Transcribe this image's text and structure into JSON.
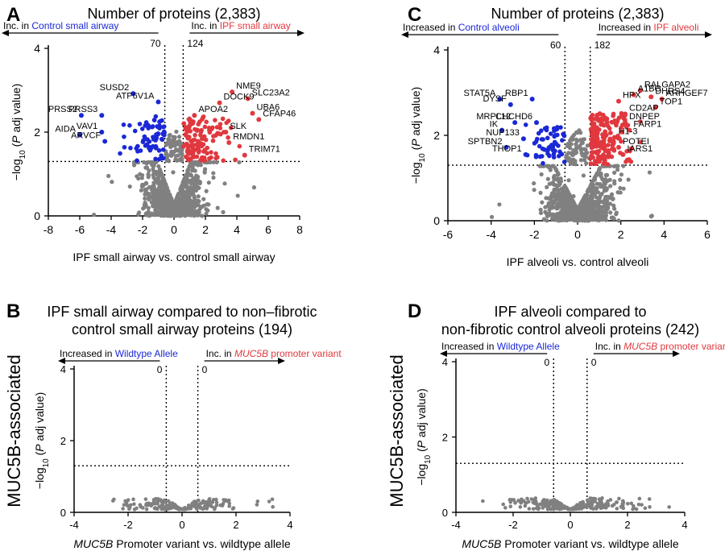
{
  "side_labels": {
    "left": "MUC5B-associated",
    "right": "MUC5B-associated"
  },
  "chart_data": [
    {
      "id": "A",
      "type": "scatter",
      "letter": "A",
      "title": "Number of proteins (2,383)",
      "xlabel": "IPF small airway vs. control small airway",
      "ylabel": "−log10 (P adj value)",
      "xlim": [
        -8,
        8
      ],
      "ylim": [
        0,
        4
      ],
      "xticks": [
        -8,
        -6,
        -4,
        -2,
        0,
        2,
        4,
        6,
        8
      ],
      "yticks": [
        0,
        2,
        4
      ],
      "thresholds": {
        "x_left": -0.585,
        "x_right": 0.585,
        "y": 1.3
      },
      "left_annotation": {
        "prefix": "Inc. in ",
        "highlight": "Control small airway",
        "count": "70"
      },
      "right_annotation": {
        "prefix": "Inc. in ",
        "highlight": "IPF small airway",
        "count": "124"
      },
      "labeled_points": [
        {
          "label": "SUSD2",
          "x": -2.6,
          "y": 2.92,
          "group": "down"
        },
        {
          "label": "ATP6V1A",
          "x": -1.0,
          "y": 2.72,
          "group": "down"
        },
        {
          "label": "PRSS2",
          "x": -5.9,
          "y": 2.4,
          "group": "down"
        },
        {
          "label": "PRSS3",
          "x": -4.6,
          "y": 2.4,
          "group": "down"
        },
        {
          "label": "VAV1",
          "x": -4.6,
          "y": 2.0,
          "group": "down"
        },
        {
          "label": "AIDA",
          "x": -6.0,
          "y": 1.93,
          "group": "down"
        },
        {
          "label": "ARVCF",
          "x": -4.4,
          "y": 1.78,
          "group": "down"
        },
        {
          "label": "NME9",
          "x": 3.7,
          "y": 2.96,
          "group": "up"
        },
        {
          "label": "SLC23A2",
          "x": 4.7,
          "y": 2.8,
          "group": "up"
        },
        {
          "label": "DOCK9",
          "x": 2.9,
          "y": 2.7,
          "group": "up"
        },
        {
          "label": "APOA2",
          "x": 1.3,
          "y": 2.4,
          "group": "up"
        },
        {
          "label": "UBA6",
          "x": 5.0,
          "y": 2.45,
          "group": "up"
        },
        {
          "label": "CFAP46",
          "x": 5.4,
          "y": 2.3,
          "group": "up"
        },
        {
          "label": "SLK",
          "x": 3.3,
          "y": 2.0,
          "group": "up"
        },
        {
          "label": "RMDN1",
          "x": 3.5,
          "y": 1.75,
          "group": "up"
        },
        {
          "label": "TRIM71",
          "x": 4.5,
          "y": 1.45,
          "group": "up"
        }
      ]
    },
    {
      "id": "C",
      "type": "scatter",
      "letter": "C",
      "title": "Number of proteins (2,383)",
      "xlabel": "IPF alveoli vs. control alveoli",
      "ylabel": "−log10 (P adj value)",
      "xlim": [
        -6,
        6
      ],
      "ylim": [
        0,
        4
      ],
      "xticks": [
        -6,
        -4,
        -2,
        0,
        2,
        4,
        6
      ],
      "yticks": [
        0,
        2,
        4
      ],
      "thresholds": {
        "x_left": -0.585,
        "x_right": 0.585,
        "y": 1.3
      },
      "left_annotation": {
        "prefix": "Increased in ",
        "highlight": "Control alveoli",
        "count": "60"
      },
      "right_annotation": {
        "prefix": "Increased in ",
        "highlight": "IPF alveoli",
        "count": "182"
      },
      "labeled_points": [
        {
          "label": "RALGAPA2",
          "x": 2.9,
          "y": 3.05,
          "group": "up"
        },
        {
          "label": "A1BG",
          "x": 2.6,
          "y": 2.95,
          "group": "up"
        },
        {
          "label": "DHRS4",
          "x": 3.4,
          "y": 2.9,
          "group": "up"
        },
        {
          "label": "HPX",
          "x": 1.9,
          "y": 2.8,
          "group": "up"
        },
        {
          "label": "ARHGEF7",
          "x": 3.9,
          "y": 2.85,
          "group": "up"
        },
        {
          "label": "TOP1",
          "x": 3.6,
          "y": 2.65,
          "group": "up"
        },
        {
          "label": "CD2AP",
          "x": 2.2,
          "y": 2.5,
          "group": "up"
        },
        {
          "label": "DNPEP",
          "x": 2.2,
          "y": 2.3,
          "group": "up"
        },
        {
          "label": "FARP1",
          "x": 2.4,
          "y": 2.12,
          "group": "up"
        },
        {
          "label": "H1-3",
          "x": 1.7,
          "y": 1.95,
          "group": "up"
        },
        {
          "label": "POTEI",
          "x": 1.9,
          "y": 1.72,
          "group": "up"
        },
        {
          "label": "IARS1",
          "x": 2.1,
          "y": 1.55,
          "group": "up"
        },
        {
          "label": "STAT5A",
          "x": -3.6,
          "y": 2.85,
          "group": "down"
        },
        {
          "label": "RBP1",
          "x": -2.1,
          "y": 2.85,
          "group": "down"
        },
        {
          "label": "DYSF",
          "x": -3.1,
          "y": 2.72,
          "group": "down"
        },
        {
          "label": "MRPL12",
          "x": -2.9,
          "y": 2.3,
          "group": "down"
        },
        {
          "label": "CHCHD6",
          "x": -1.9,
          "y": 2.3,
          "group": "down"
        },
        {
          "label": "IK",
          "x": -3.5,
          "y": 2.12,
          "group": "down"
        },
        {
          "label": "NUP133",
          "x": -2.5,
          "y": 1.92,
          "group": "down"
        },
        {
          "label": "SPTBN2",
          "x": -3.3,
          "y": 1.72,
          "group": "down"
        },
        {
          "label": "THOP1",
          "x": -2.4,
          "y": 1.55,
          "group": "down"
        }
      ]
    },
    {
      "id": "B",
      "type": "scatter",
      "letter": "B",
      "title": "IPF small airway compared to non–fibrotic control small airway proteins (194)",
      "title_lines": [
        "IPF small airway compared to non–fibrotic",
        "control small airway proteins (194)"
      ],
      "xlabel_italic": "MUC5B",
      "xlabel_rest": " Promoter variant vs. wildtype allele",
      "ylabel": "−log10 (P adj value)",
      "xlim": [
        -4,
        4
      ],
      "ylim": [
        0,
        4
      ],
      "xticks": [
        -4,
        -2,
        0,
        2,
        4
      ],
      "yticks": [
        0,
        2,
        4
      ],
      "thresholds": {
        "x_left": -0.585,
        "x_right": 0.585,
        "y": 1.3
      },
      "left_annotation": {
        "prefix": "Increased in ",
        "highlight": "Wildtype Allele",
        "count": "0"
      },
      "right_annotation": {
        "prefix": "Inc. in ",
        "highlight_italic": "MUC5B",
        "highlight_rest": " promoter variant",
        "count": "0"
      },
      "n_points": 194
    },
    {
      "id": "D",
      "type": "scatter",
      "letter": "D",
      "title": "IPF alveoli compared to non-fibrotic control alveoli proteins (242)",
      "title_lines": [
        "IPF alveoli compared to",
        "non-fibrotic control alveoli proteins (242)"
      ],
      "xlabel_italic": "MUC5B",
      "xlabel_rest": " Promoter variant vs. wildtype allele",
      "ylabel": "−log10 (P adj value)",
      "xlim": [
        -4,
        4
      ],
      "ylim": [
        0,
        4
      ],
      "xticks": [
        -4,
        -2,
        0,
        2,
        4
      ],
      "yticks": [
        0,
        2,
        4
      ],
      "thresholds": {
        "x_left": -0.585,
        "x_right": 0.585,
        "y": 1.3
      },
      "left_annotation": {
        "prefix": "Increased in ",
        "highlight": "Wildtype Allele",
        "count": "0"
      },
      "right_annotation": {
        "prefix": "Inc. in ",
        "highlight_italic": "MUC5B",
        "highlight_rest": " promoter variant",
        "count": "0"
      },
      "n_points": 242
    }
  ],
  "colors": {
    "down": "#1a28d6",
    "up": "#e0383e",
    "ns": "#808080",
    "highlight_blue": "#1a28d6",
    "highlight_red": "#e0383e"
  }
}
